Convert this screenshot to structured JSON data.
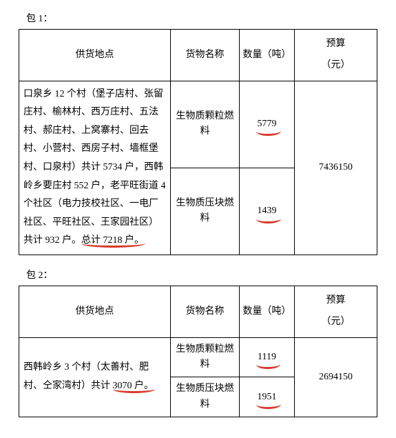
{
  "headers": {
    "location": "供货地点",
    "goods": "货物名称",
    "qty": "数量（吨）",
    "budget_line1": "预算",
    "budget_line2": "（元）"
  },
  "package1": {
    "label": "包 1：",
    "location_pre": "口泉乡 12 个村（堡子店村、张留庄村、榆林村、西万庄村、五法村、郝庄村、上窝寨村、回去村、小营村、西房子村、墙框堡村、口泉村）共计 5734 户，西韩岭乡要庄村 552 户，老平旺街道 4 个社区（电力技校社区、一电厂社区、平旺社区、王家园社区）共计 932 户。",
    "location_marked": "总计 7218 户。",
    "row1": {
      "goods": "生物质颗粒燃料",
      "qty": "5779"
    },
    "row2": {
      "goods": "生物质压块燃料",
      "qty": "1439"
    },
    "budget": "7436150"
  },
  "package2": {
    "label": "包 2：",
    "location_pre": "西韩岭乡 3 个村（太善村、肥村、仝家湾村）共计 ",
    "location_marked": "3070 户。",
    "row1": {
      "goods": "生物质颗粒燃料",
      "qty": "1119"
    },
    "row2": {
      "goods": "生物质压块燃料",
      "qty": "1951"
    },
    "budget": "2694150"
  }
}
